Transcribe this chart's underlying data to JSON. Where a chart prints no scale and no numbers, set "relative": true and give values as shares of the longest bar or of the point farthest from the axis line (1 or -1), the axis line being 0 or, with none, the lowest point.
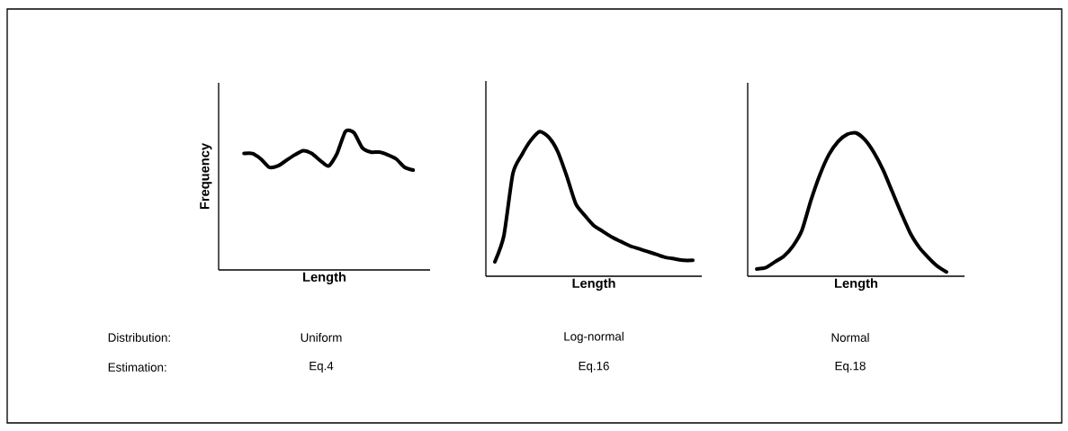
{
  "chart_data": [
    {
      "type": "line",
      "relative": true,
      "tick_labels": false,
      "xlabel": "Length",
      "ylabel": "Frequency",
      "color": "#000000",
      "categories": [
        null,
        null,
        null,
        null,
        null,
        null,
        null,
        null,
        null,
        null,
        null,
        null,
        null,
        null,
        null,
        null,
        null,
        null,
        null,
        null,
        null,
        null,
        null,
        null,
        null,
        null
      ],
      "values": [
        null,
        null,
        null,
        0.84,
        0.84,
        0.8,
        0.74,
        0.75,
        0.79,
        0.83,
        0.86,
        0.84,
        0.79,
        0.75,
        0.84,
        1.0,
        0.99,
        0.88,
        0.85,
        0.85,
        0.83,
        0.8,
        0.74,
        0.72,
        null,
        null
      ],
      "annotations": [
        "Distribution:",
        "Estimation:",
        "Uniform",
        "Eq.4"
      ]
    },
    {
      "type": "line",
      "relative": true,
      "tick_labels": false,
      "xlabel": "Length",
      "color": "#000000",
      "categories": [
        null,
        null,
        null,
        null,
        null,
        null,
        null,
        null,
        null,
        null,
        null,
        null,
        null,
        null,
        null,
        null,
        null,
        null,
        null,
        null,
        null,
        null,
        null,
        null,
        null
      ],
      "values": [
        null,
        0.1,
        0.28,
        0.71,
        0.84,
        0.94,
        1.0,
        0.96,
        0.86,
        0.69,
        0.5,
        0.42,
        0.35,
        0.31,
        0.27,
        0.24,
        0.21,
        0.19,
        0.17,
        0.15,
        0.13,
        0.12,
        0.11,
        0.11,
        null
      ],
      "annotations": [
        "Log-normal",
        "Eq.16"
      ]
    },
    {
      "type": "line",
      "relative": true,
      "tick_labels": false,
      "xlabel": "Length",
      "color": "#000000",
      "categories": [
        null,
        null,
        null,
        null,
        null,
        null,
        null,
        null,
        null,
        null,
        null,
        null,
        null,
        null,
        null,
        null,
        null,
        null,
        null,
        null,
        null,
        null,
        null,
        null,
        null
      ],
      "values": [
        null,
        0.05,
        0.06,
        0.1,
        0.14,
        0.21,
        0.32,
        0.53,
        0.71,
        0.85,
        0.94,
        0.99,
        1.0,
        0.95,
        0.86,
        0.74,
        0.59,
        0.44,
        0.3,
        0.2,
        0.13,
        0.07,
        0.03,
        null,
        null
      ],
      "annotations": [
        "Normal",
        "Eq.18"
      ]
    }
  ]
}
